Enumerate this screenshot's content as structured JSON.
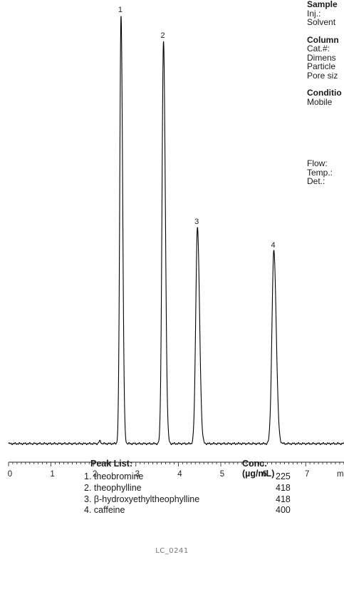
{
  "info_panel": {
    "groups": [
      {
        "title": "Sample",
        "lines": [
          "Inj.:",
          "Solvent"
        ]
      },
      {
        "title": "Column",
        "lines": [
          "Cat.#:",
          "Dimens",
          "Particle",
          "Pore siz"
        ]
      },
      {
        "title": "Conditio",
        "lines": [
          "Mobile"
        ]
      },
      {
        "title": "",
        "lines": [
          "Flow:",
          "Temp.:",
          "Det.:"
        ]
      }
    ]
  },
  "peak_list": {
    "header": "Peak List:",
    "conc_header": "Conc. (µg/mL)",
    "items": [
      {
        "label": "1. theobromine",
        "conc": "225"
      },
      {
        "label": "2. theophylline",
        "conc": "418"
      },
      {
        "label": "3. β-hydroxyethyltheophylline",
        "conc": "418"
      },
      {
        "label": "4. caffeine",
        "conc": "400"
      }
    ]
  },
  "footer_code": "LC_0241",
  "chart_data": {
    "type": "line",
    "x_unit": "mi",
    "xlim": [
      0,
      7.9
    ],
    "x_ticks": [
      0,
      1,
      2,
      3,
      4,
      5,
      6,
      7
    ],
    "x_tick_labels": [
      "0",
      "1",
      "2",
      "3",
      "4",
      "5",
      "6",
      "7"
    ],
    "ylim": [
      0,
      100
    ],
    "baseline": 0.5,
    "peaks": [
      {
        "label": "1",
        "time": 2.65,
        "height": 100,
        "sigma": 0.03
      },
      {
        "label": "2",
        "time": 3.65,
        "height": 94,
        "sigma": 0.035
      },
      {
        "label": "3",
        "time": 4.45,
        "height": 50.5,
        "sigma": 0.04
      },
      {
        "label": "4",
        "time": 6.25,
        "height": 45,
        "sigma": 0.045
      }
    ],
    "minor_peaks": [
      {
        "time": 2.15,
        "height": 0.6,
        "sigma": 0.02
      }
    ],
    "line_color": "#000000"
  }
}
